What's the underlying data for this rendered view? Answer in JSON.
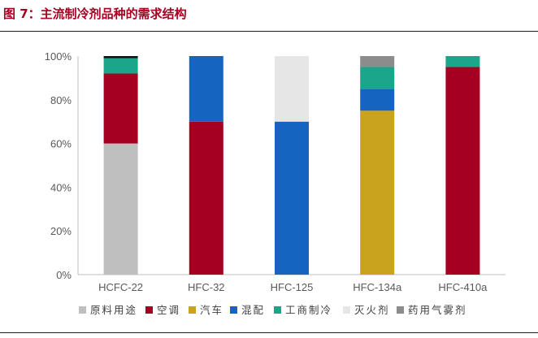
{
  "figure": {
    "title": "图 7：主流制冷剂品种的需求结构"
  },
  "chart_data": {
    "type": "bar",
    "stacked": true,
    "title": "",
    "xlabel": "",
    "ylabel": "",
    "ylim": [
      0,
      100
    ],
    "y_ticks": [
      "0%",
      "20%",
      "40%",
      "60%",
      "80%",
      "100%"
    ],
    "grid": false,
    "legend_position": "bottom",
    "categories": [
      "HCFC-22",
      "HFC-32",
      "HFC-125",
      "HFC-134a",
      "HFC-410a"
    ],
    "series": [
      {
        "name": "原料用途",
        "color": "#bfbfbf",
        "values": [
          60,
          0,
          0,
          0,
          0
        ]
      },
      {
        "name": "空调",
        "color": "#a50021",
        "values": [
          32,
          70,
          0,
          0,
          95
        ]
      },
      {
        "name": "汽车",
        "color": "#c9a21e",
        "values": [
          0,
          0,
          0,
          75,
          0
        ]
      },
      {
        "name": "混配",
        "color": "#1565c0",
        "values": [
          0,
          30,
          70,
          10,
          0
        ]
      },
      {
        "name": "工商制冷",
        "color": "#1aa68a",
        "values": [
          7,
          0,
          0,
          10,
          5
        ]
      },
      {
        "name": "灭火剂",
        "color": "#e6e6e6",
        "values": [
          0,
          0,
          30,
          0,
          0
        ]
      },
      {
        "name": "药用气雾剂",
        "color": "#8c8c8c",
        "values": [
          0,
          0,
          0,
          5,
          0
        ]
      },
      {
        "name": "",
        "color": "#111111",
        "values": [
          1,
          0,
          0,
          0,
          0
        ]
      }
    ]
  }
}
